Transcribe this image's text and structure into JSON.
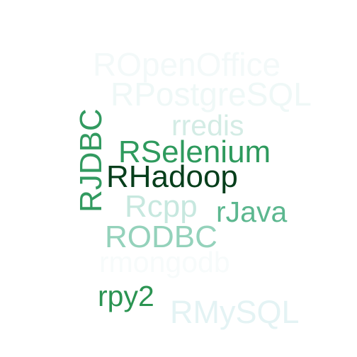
{
  "words": [
    {
      "id": "ropenoffice",
      "text": "ROpenOffice",
      "color": "#f3f9f9"
    },
    {
      "id": "rpostgresql",
      "text": "RPostgreSQL",
      "color": "#eff8f7"
    },
    {
      "id": "rredis",
      "text": "rredis",
      "color": "#d4ece5"
    },
    {
      "id": "rselenium",
      "text": "RSelenium",
      "color": "#2e9a5d"
    },
    {
      "id": "rhadoop",
      "text": "RHadoop",
      "color": "#063e1b"
    },
    {
      "id": "rjdbc",
      "text": "RJDBC",
      "color": "#329a60"
    },
    {
      "id": "rcpp",
      "text": "Rcpp",
      "color": "#c7e8df"
    },
    {
      "id": "rjava",
      "text": "rJava",
      "color": "#5cb78f"
    },
    {
      "id": "rodbc",
      "text": "RODBC",
      "color": "#94d2bb"
    },
    {
      "id": "rmongodb",
      "text": "rmongodb",
      "color": "#f7fbfb"
    },
    {
      "id": "rpy2",
      "text": "rpy2",
      "color": "#2b9452"
    },
    {
      "id": "rmysql",
      "text": "RMySQL",
      "color": "#e4f3f4"
    }
  ]
}
